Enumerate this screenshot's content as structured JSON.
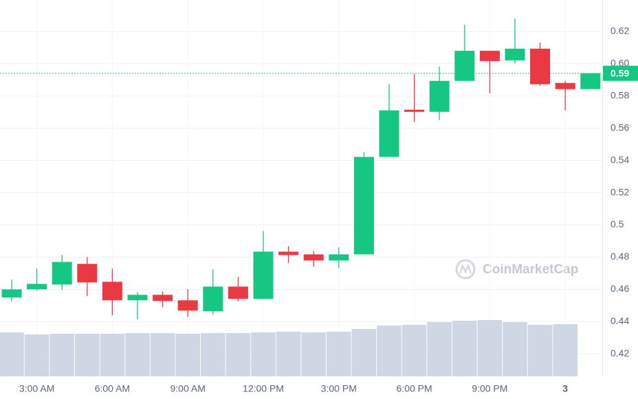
{
  "chart_data": {
    "type": "candlestick",
    "categories": [
      null,
      "3:00 AM",
      null,
      null,
      "6:00 AM",
      null,
      null,
      "9:00 AM",
      null,
      null,
      "12:00 PM",
      null,
      null,
      "3:00 PM",
      null,
      null,
      "6:00 PM",
      null,
      null,
      "9:00 PM",
      null,
      null,
      "3",
      null
    ],
    "open": [
      0.4549,
      0.46,
      0.463,
      0.4758,
      0.4647,
      0.4532,
      0.4566,
      0.4532,
      0.4464,
      0.4617,
      0.4541,
      0.4834,
      0.4817,
      0.4779,
      0.4817,
      0.5422,
      0.5715,
      0.5702,
      0.5894,
      0.6081,
      0.6021,
      0.6094,
      0.5881,
      0.5843
    ],
    "high": [
      0.466,
      0.4728,
      0.4813,
      0.48,
      0.4728,
      0.4583,
      0.4587,
      0.46,
      0.4724,
      0.4677,
      0.4962,
      0.4868,
      0.4838,
      0.486,
      0.5451,
      0.5873,
      0.5936,
      0.5983,
      0.6243,
      0.6081,
      0.6281,
      0.6132,
      0.5894,
      0.5941
    ],
    "low": [
      0.4523,
      0.4592,
      0.4596,
      0.4558,
      0.4439,
      0.4413,
      0.449,
      0.443,
      0.4443,
      0.4524,
      0.4541,
      0.4762,
      0.4741,
      0.4732,
      0.4817,
      0.5422,
      0.5639,
      0.5651,
      0.5894,
      0.5817,
      0.6004,
      0.5864,
      0.5711,
      0.5843
    ],
    "close": [
      0.46,
      0.4634,
      0.477,
      0.4643,
      0.4532,
      0.4566,
      0.4528,
      0.4468,
      0.4617,
      0.4541,
      0.4834,
      0.4813,
      0.4779,
      0.4817,
      0.5422,
      0.5711,
      0.5702,
      0.5894,
      0.6081,
      0.6017,
      0.6094,
      0.5873,
      0.5843,
      0.5941
    ],
    "volume": [
      64,
      61,
      62,
      62,
      62,
      63,
      63,
      62,
      63,
      63,
      64,
      65,
      64,
      65,
      69,
      74,
      75,
      79,
      81,
      82,
      79,
      75,
      76,
      null
    ],
    "up_color": "#16c784",
    "down_color": "#ea3943",
    "volume_color": "#cfd6e4",
    "ylim": [
      0.406,
      0.6396
    ],
    "yticks": [
      0.42,
      0.44,
      0.46,
      0.48,
      0.5,
      0.52,
      0.54,
      0.56,
      0.58,
      {
        "value": 0.6,
        "label": "0.60"
      },
      0.62
    ],
    "grid": true,
    "current_price": {
      "value": 0.5941,
      "label": "0.59"
    },
    "watermark": "CoinMarketCap"
  }
}
